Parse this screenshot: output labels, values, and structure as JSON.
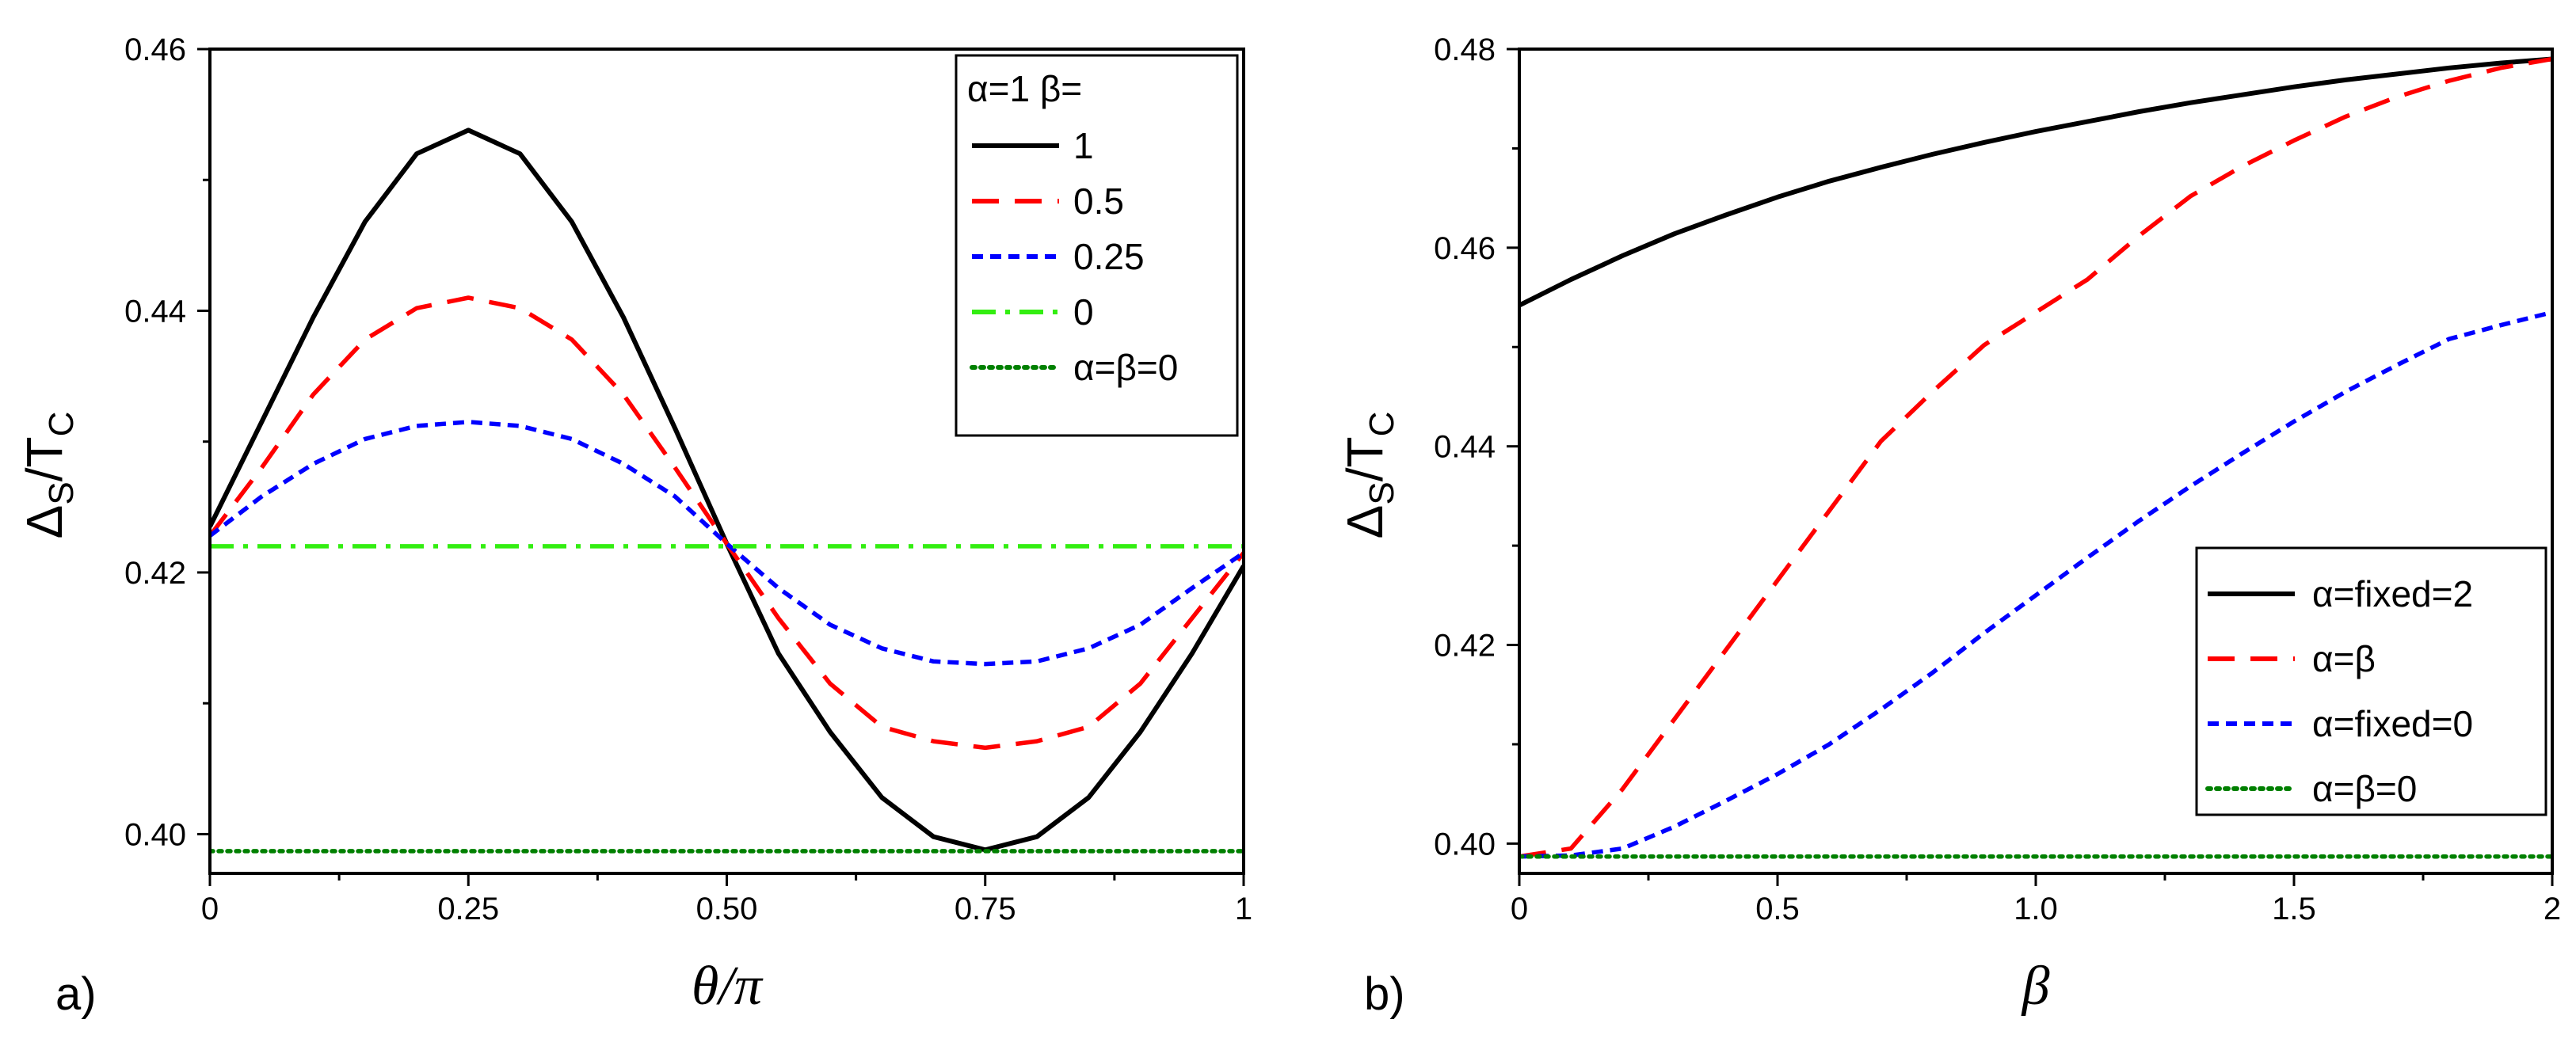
{
  "chart_data": [
    {
      "type": "line",
      "panel_label": "a)",
      "xlabel": "θ/π",
      "ylabel_main": "Δ",
      "ylabel_sub": "S",
      "ylabel_slash": "/T",
      "ylabel_sub2": "C",
      "xlim": [
        0,
        1
      ],
      "ylim": [
        0.397,
        0.46
      ],
      "xticks": [
        0,
        0.25,
        0.5,
        0.75,
        1
      ],
      "xtick_labels": [
        "0",
        "0.25",
        "0.50",
        "0.75",
        "1"
      ],
      "yticks": [
        0.4,
        0.42,
        0.44,
        0.46
      ],
      "ytick_labels": [
        "0.40",
        "0.42",
        "0.44",
        "0.46"
      ],
      "legend_title": "α=1 β=",
      "legend_position": "top-right",
      "series": [
        {
          "name": "1",
          "color": "#000000",
          "style": "solid",
          "x": [
            0,
            0.05,
            0.1,
            0.15,
            0.2,
            0.25,
            0.3,
            0.35,
            0.4,
            0.45,
            0.5,
            0.55,
            0.6,
            0.65,
            0.7,
            0.75,
            0.8,
            0.85,
            0.9,
            0.95,
            1.0
          ],
          "y": [
            0.4235,
            0.4315,
            0.4395,
            0.4468,
            0.452,
            0.4538,
            0.452,
            0.4468,
            0.4395,
            0.431,
            0.4222,
            0.4138,
            0.4078,
            0.4028,
            0.3998,
            0.3988,
            0.3998,
            0.4028,
            0.4078,
            0.4138,
            0.4205
          ]
        },
        {
          "name": "0.5",
          "color": "#ff0000",
          "style": "dashed",
          "x": [
            0,
            0.05,
            0.1,
            0.15,
            0.2,
            0.25,
            0.3,
            0.35,
            0.4,
            0.45,
            0.5,
            0.55,
            0.6,
            0.65,
            0.7,
            0.75,
            0.8,
            0.85,
            0.9,
            0.95,
            1.0
          ],
          "y": [
            0.4228,
            0.428,
            0.4336,
            0.4378,
            0.4402,
            0.441,
            0.4402,
            0.4378,
            0.4336,
            0.428,
            0.4222,
            0.4165,
            0.4115,
            0.4082,
            0.4071,
            0.4066,
            0.4071,
            0.4082,
            0.4115,
            0.4165,
            0.4215
          ]
        },
        {
          "name": "0.25",
          "color": "#0000ff",
          "style": "short-dashed",
          "x": [
            0,
            0.05,
            0.1,
            0.15,
            0.2,
            0.25,
            0.3,
            0.35,
            0.4,
            0.45,
            0.5,
            0.55,
            0.6,
            0.65,
            0.7,
            0.75,
            0.8,
            0.85,
            0.9,
            0.95,
            1.0
          ],
          "y": [
            0.4228,
            0.4258,
            0.4283,
            0.4302,
            0.4312,
            0.4315,
            0.4312,
            0.4302,
            0.4283,
            0.4258,
            0.4222,
            0.4188,
            0.416,
            0.4142,
            0.4132,
            0.413,
            0.4132,
            0.4142,
            0.416,
            0.4188,
            0.4215
          ]
        },
        {
          "name": "0",
          "color": "#33ee11",
          "style": "dash-dot",
          "x": [
            0,
            1
          ],
          "y": [
            0.422,
            0.422
          ]
        },
        {
          "name": "α=β=0",
          "color": "#008000",
          "style": "dotted",
          "x": [
            0,
            1
          ],
          "y": [
            0.3987,
            0.3987
          ]
        }
      ]
    },
    {
      "type": "line",
      "panel_label": "b)",
      "xlabel": "β",
      "ylabel_main": "Δ",
      "ylabel_sub": "S",
      "ylabel_slash": "/T",
      "ylabel_sub2": "C",
      "xlim": [
        0,
        2
      ],
      "ylim": [
        0.397,
        0.48
      ],
      "xticks": [
        0,
        0.5,
        1.0,
        1.5,
        2
      ],
      "xtick_labels": [
        "0",
        "0.5",
        "1.0",
        "1.5",
        "2"
      ],
      "yticks": [
        0.4,
        0.42,
        0.44,
        0.46,
        0.48
      ],
      "ytick_labels": [
        "0.40",
        "0.42",
        "0.44",
        "0.46",
        "0.48"
      ],
      "legend_title": "",
      "legend_position": "bottom-right",
      "series": [
        {
          "name": "α=fixed=2",
          "color": "#000000",
          "style": "solid",
          "x": [
            0,
            0.1,
            0.2,
            0.3,
            0.4,
            0.5,
            0.6,
            0.7,
            0.8,
            0.9,
            1.0,
            1.1,
            1.2,
            1.3,
            1.4,
            1.5,
            1.6,
            1.7,
            1.8,
            1.9,
            2.0
          ],
          "y": [
            0.4542,
            0.4568,
            0.4592,
            0.4614,
            0.4633,
            0.4651,
            0.4667,
            0.4681,
            0.4694,
            0.4706,
            0.4717,
            0.4727,
            0.4737,
            0.4746,
            0.4754,
            0.4762,
            0.4769,
            0.4775,
            0.4781,
            0.4786,
            0.479
          ]
        },
        {
          "name": "α=β",
          "color": "#ff0000",
          "style": "dashed",
          "x": [
            0,
            0.1,
            0.2,
            0.3,
            0.4,
            0.5,
            0.6,
            0.7,
            0.8,
            0.9,
            1.0,
            1.1,
            1.2,
            1.3,
            1.4,
            1.5,
            1.6,
            1.7,
            1.8,
            1.9,
            2.0
          ],
          "y": [
            0.3987,
            0.3995,
            0.4055,
            0.4125,
            0.4195,
            0.4265,
            0.4335,
            0.4405,
            0.4455,
            0.4502,
            0.4535,
            0.4568,
            0.4612,
            0.4652,
            0.4682,
            0.4708,
            0.4732,
            0.4752,
            0.4768,
            0.4781,
            0.479
          ]
        },
        {
          "name": "α=fixed=0",
          "color": "#0000ff",
          "style": "short-dashed",
          "x": [
            0,
            0.1,
            0.2,
            0.3,
            0.4,
            0.5,
            0.6,
            0.7,
            0.8,
            0.9,
            1.0,
            1.1,
            1.2,
            1.3,
            1.4,
            1.5,
            1.6,
            1.7,
            1.8,
            1.9,
            2.0
          ],
          "y": [
            0.3987,
            0.3988,
            0.3995,
            0.4017,
            0.4043,
            0.407,
            0.41,
            0.4135,
            0.4172,
            0.4212,
            0.425,
            0.4288,
            0.4325,
            0.436,
            0.4393,
            0.4425,
            0.4455,
            0.4482,
            0.4508,
            0.4522,
            0.4535
          ]
        },
        {
          "name": "α=β=0",
          "color": "#008000",
          "style": "dotted",
          "x": [
            0,
            2
          ],
          "y": [
            0.3987,
            0.3987
          ]
        }
      ]
    }
  ]
}
